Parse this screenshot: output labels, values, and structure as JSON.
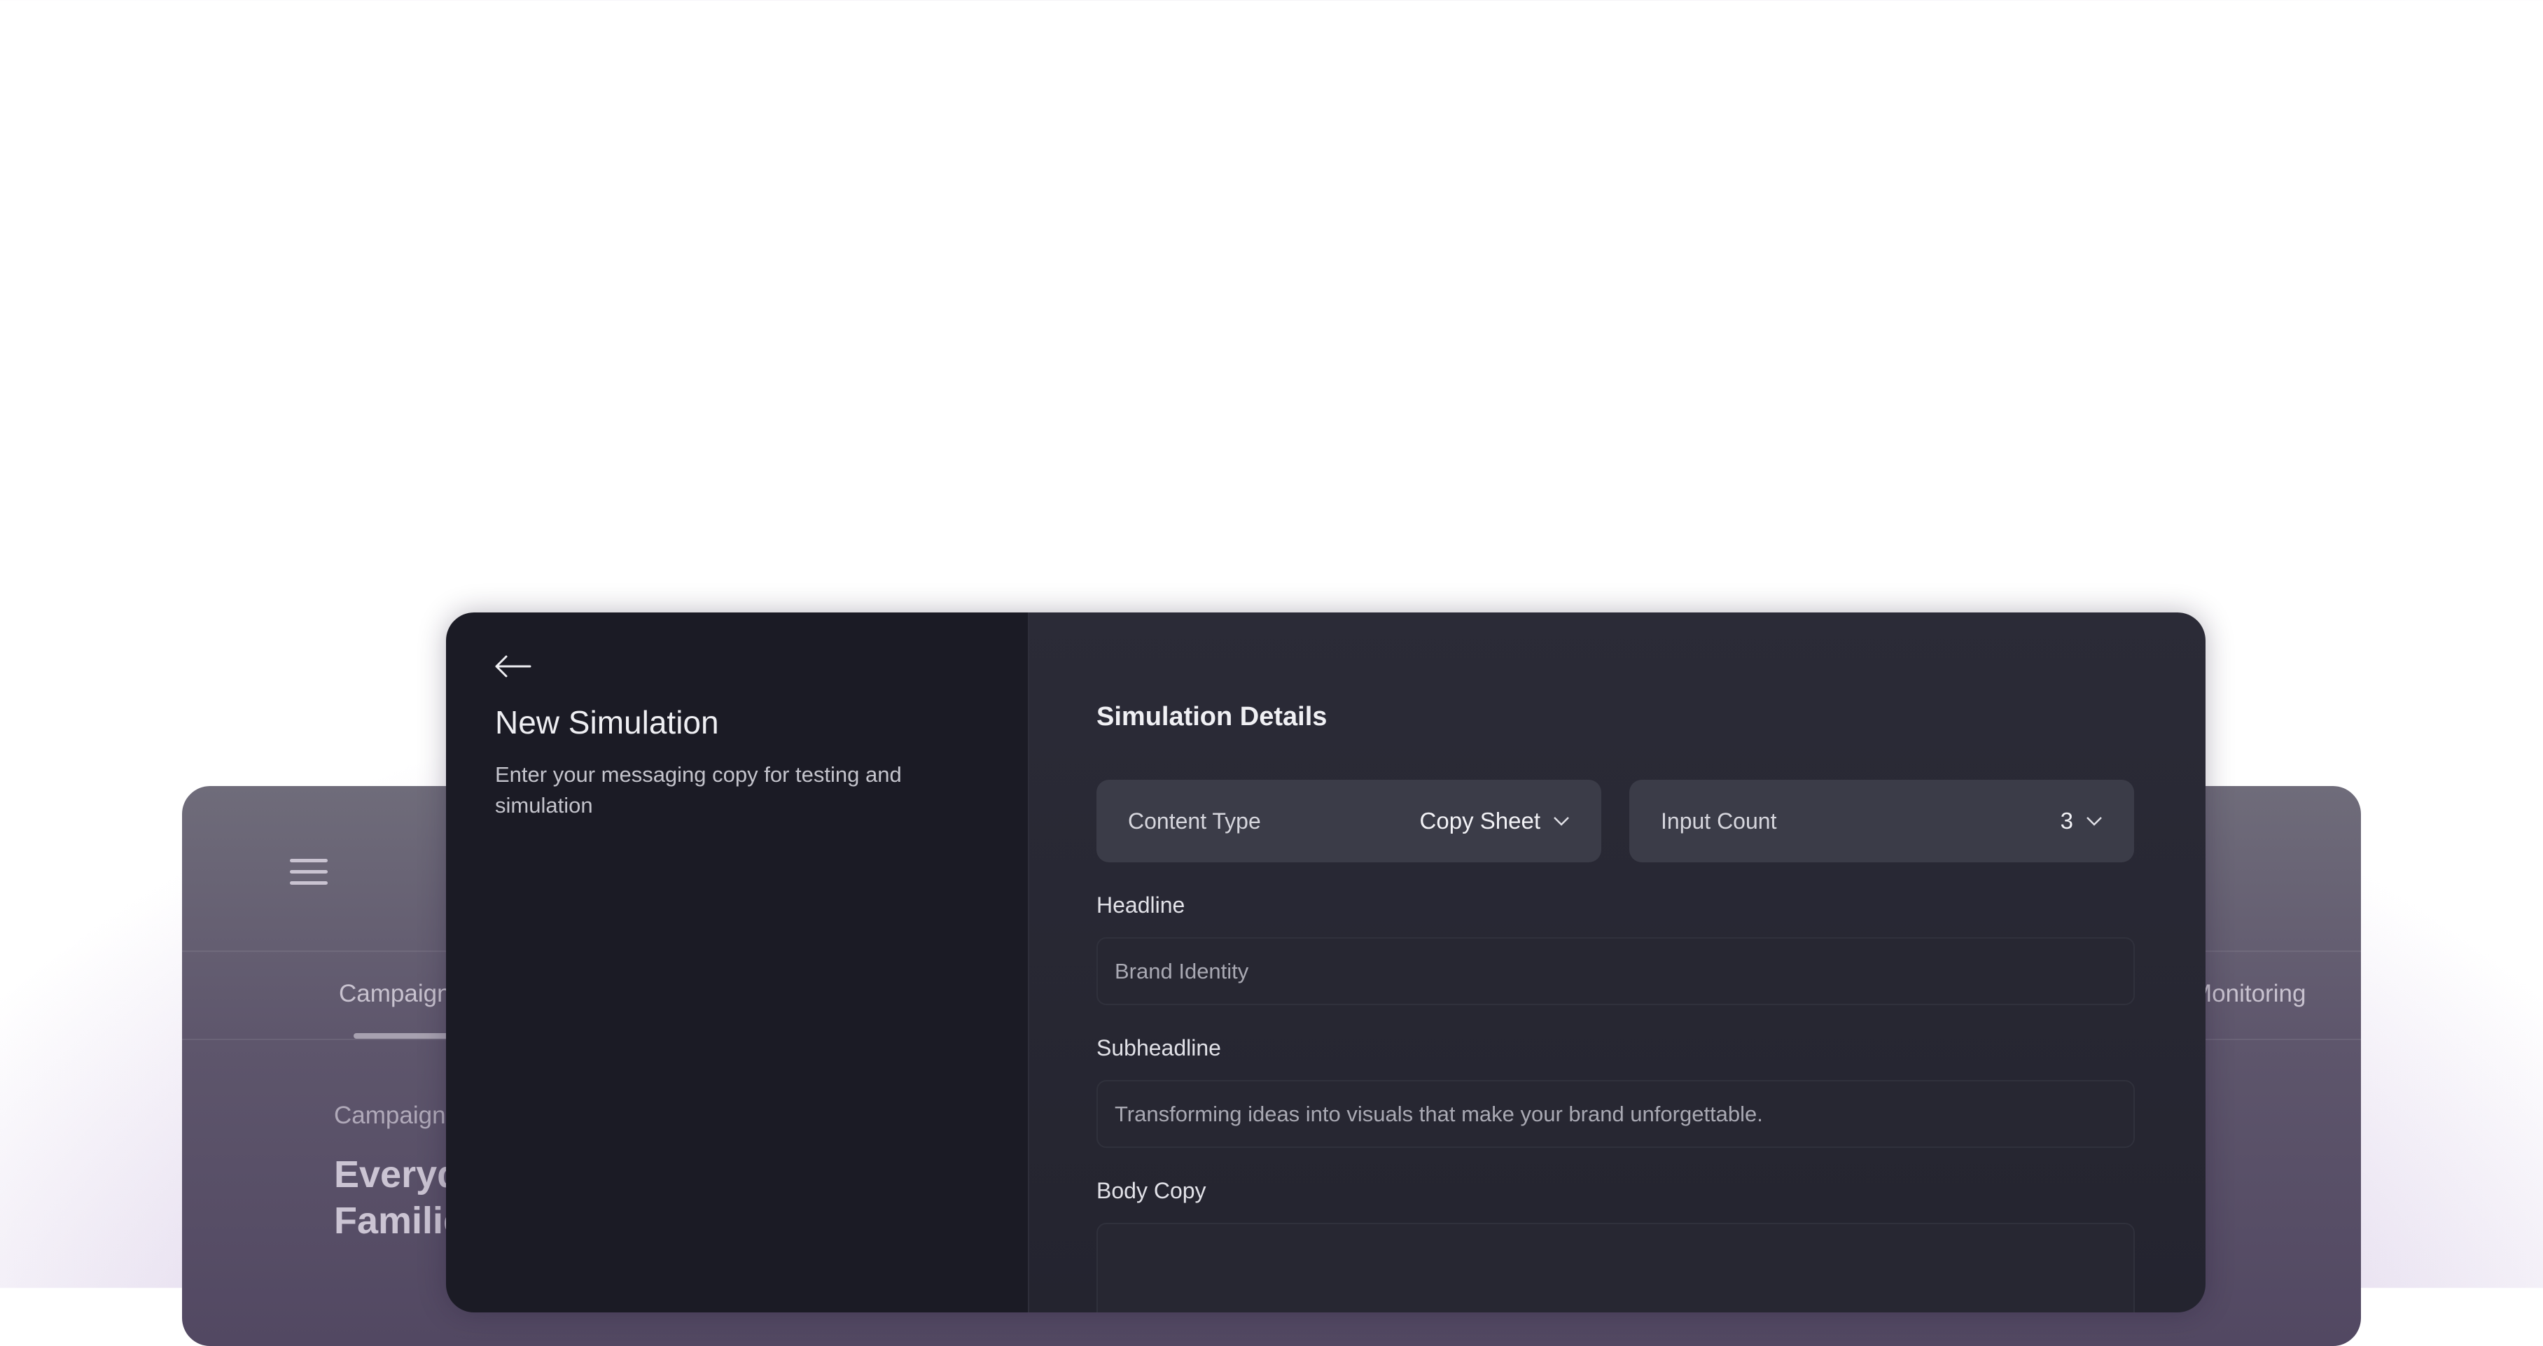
{
  "background_app": {
    "tabs": [
      {
        "label": "Campaign"
      },
      {
        "label": "Monitoring"
      }
    ],
    "section_label": "Campaign",
    "campaign_title_line1": "Everyd",
    "campaign_title_line2": "Familie"
  },
  "modal": {
    "title": "New Simulation",
    "subtitle": "Enter your messaging copy for testing and simulation",
    "details_title": "Simulation Details",
    "content_type": {
      "label": "Content Type",
      "value": "Copy Sheet"
    },
    "input_count": {
      "label": "Input Count",
      "value": "3"
    },
    "fields": [
      {
        "label": "Headline",
        "value": "Brand Identity"
      },
      {
        "label": "Subheadline",
        "value": "Transforming ideas into visuals that make your brand unforgettable."
      },
      {
        "label": "Body Copy",
        "value": ""
      }
    ]
  },
  "colors": {
    "accent_bg": "#1b1b25",
    "panel_bg": "#2b2b37",
    "dropdown_bg": "#3b3c48"
  }
}
